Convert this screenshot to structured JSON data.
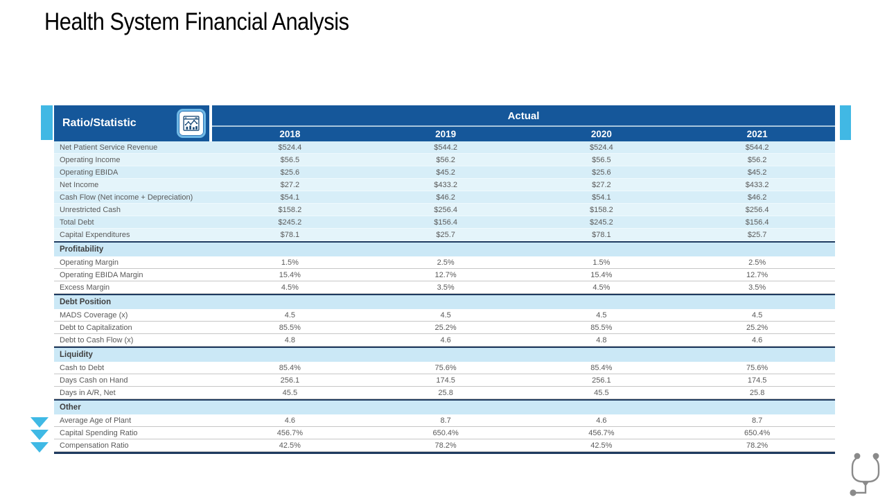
{
  "page_title": "Health System Financial Analysis",
  "colors": {
    "header_blue": "#15579A",
    "accent_sky_blue": "#41B8E4",
    "row_light_blue": "#D7EEF8",
    "section_header_blue": "#CBE8F6",
    "section_border_navy": "#1E3A5F",
    "body_text_gray": "#595959",
    "stethoscope_gray": "#8A8A8A"
  },
  "icons": {
    "header_icon": "chart-window-icon",
    "left_markers": "down-arrow-icon",
    "corner_icon": "stethoscope-icon"
  },
  "table": {
    "header": {
      "ratio_statistic": "Ratio/Statistic",
      "group": "Actual",
      "years": [
        "2018",
        "2019",
        "2020",
        "2021"
      ]
    },
    "sections": [
      {
        "name": null,
        "rows": [
          {
            "label": "Net Patient Service Revenue",
            "values": [
              "$524.4",
              "$544.2",
              "$524.4",
              "$544.2"
            ]
          },
          {
            "label": "Operating Income",
            "values": [
              "$56.5",
              "$56.2",
              "$56.5",
              "$56.2"
            ]
          },
          {
            "label": "Operating EBIDA",
            "values": [
              "$25.6",
              "$45.2",
              "$25.6",
              "$45.2"
            ]
          },
          {
            "label": "Net Income",
            "values": [
              "$27.2",
              "$433.2",
              "$27.2",
              "$433.2"
            ]
          },
          {
            "label": "Cash Flow (Net income + Depreciation)",
            "values": [
              "$54.1",
              "$46.2",
              "$54.1",
              "$46.2"
            ]
          },
          {
            "label": "Unrestricted Cash",
            "values": [
              "$158.2",
              "$256.4",
              "$158.2",
              "$256.4"
            ]
          },
          {
            "label": "Total Debt",
            "values": [
              "$245.2",
              "$156.4",
              "$245.2",
              "$156.4"
            ]
          },
          {
            "label": "Capital Expenditures",
            "values": [
              "$78.1",
              "$25.7",
              "$78.1",
              "$25.7"
            ]
          }
        ]
      },
      {
        "name": "Profitability",
        "rows": [
          {
            "label": "Operating Margin",
            "values": [
              "1.5%",
              "2.5%",
              "1.5%",
              "2.5%"
            ]
          },
          {
            "label": "Operating EBIDA Margin",
            "values": [
              "15.4%",
              "12.7%",
              "15.4%",
              "12.7%"
            ]
          },
          {
            "label": "Excess Margin",
            "values": [
              "4.5%",
              "3.5%",
              "4.5%",
              "3.5%"
            ]
          }
        ]
      },
      {
        "name": "Debt Position",
        "rows": [
          {
            "label": "MADS Coverage (x)",
            "values": [
              "4.5",
              "4.5",
              "4.5",
              "4.5"
            ]
          },
          {
            "label": "Debt to Capitalization",
            "values": [
              "85.5%",
              "25.2%",
              "85.5%",
              "25.2%"
            ]
          },
          {
            "label": "Debt to Cash Flow (x)",
            "values": [
              "4.8",
              "4.6",
              "4.8",
              "4.6"
            ]
          }
        ]
      },
      {
        "name": "Liquidity",
        "rows": [
          {
            "label": "Cash to Debt",
            "values": [
              "85.4%",
              "75.6%",
              "85.4%",
              "75.6%"
            ]
          },
          {
            "label": "Days Cash on Hand",
            "values": [
              "256.1",
              "174.5",
              "256.1",
              "174.5"
            ]
          },
          {
            "label": "Days in A/R, Net",
            "values": [
              "45.5",
              "25.8",
              "45.5",
              "25.8"
            ]
          }
        ]
      },
      {
        "name": "Other",
        "rows": [
          {
            "label": "Average Age of Plant",
            "values": [
              "4.6",
              "8.7",
              "4.6",
              "8.7"
            ]
          },
          {
            "label": "Capital Spending Ratio",
            "values": [
              "456.7%",
              "650.4%",
              "456.7%",
              "650.4%"
            ]
          },
          {
            "label": "Compensation Ratio",
            "values": [
              "42.5%",
              "78.2%",
              "42.5%",
              "78.2%"
            ]
          }
        ]
      }
    ]
  }
}
